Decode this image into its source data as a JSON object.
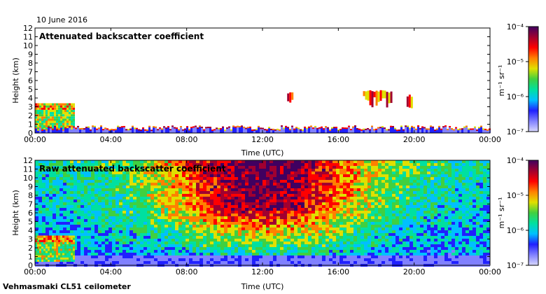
{
  "date_label": "10 June 2016",
  "instrument_label": "Vehmasmaki CL51 ceilometer",
  "colorbar": {
    "unit_label": "m⁻¹ sr⁻¹",
    "tick_labels": [
      "10⁻⁴",
      "10⁻⁵",
      "10⁻⁶",
      "10⁻⁷"
    ],
    "range": [
      1e-07,
      0.0001
    ],
    "colors": [
      "#d8d8ff",
      "#8080ff",
      "#2020ff",
      "#00c0ff",
      "#00e0a0",
      "#40d040",
      "#e0e000",
      "#ff8000",
      "#ff0000",
      "#a00030",
      "#400060"
    ]
  },
  "chart_data": [
    {
      "type": "heatmap",
      "title": "Attenuated backscatter coefficient",
      "xlabel": "Time (UTC)",
      "ylabel": "Height (km)",
      "x_ticks": [
        "00:00",
        "04:00",
        "08:00",
        "12:00",
        "16:00",
        "20:00",
        "00:00"
      ],
      "y_ticks": [
        "0",
        "1",
        "2",
        "3",
        "4",
        "5",
        "6",
        "7",
        "8",
        "9",
        "10",
        "11",
        "12"
      ],
      "xlim_hours": [
        0,
        24
      ],
      "ylim_km": [
        0,
        12
      ],
      "features": [
        {
          "name": "low boundary layer aerosol",
          "start_h": 0,
          "end_h": 2,
          "top_km": 3.2
        },
        {
          "name": "surface layer",
          "start_h": 0,
          "end_h": 24,
          "top_km": 0.7
        },
        {
          "name": "cloud",
          "start_h": 13.3,
          "end_h": 13.6,
          "top_km": 4.8
        },
        {
          "name": "cloud",
          "start_h": 17.3,
          "end_h": 18.8,
          "top_km": 4.9
        },
        {
          "name": "cloud",
          "start_h": 19.6,
          "end_h": 19.9,
          "top_km": 4.4
        }
      ]
    },
    {
      "type": "heatmap",
      "title": "Raw attenuated backscatter coefficient",
      "xlabel": "Time (UTC)",
      "ylabel": "Height (km)",
      "x_ticks": [
        "00:00",
        "04:00",
        "08:00",
        "12:00",
        "16:00",
        "20:00",
        "00:00"
      ],
      "y_ticks": [
        "0",
        "1",
        "2",
        "3",
        "4",
        "5",
        "6",
        "7",
        "8",
        "9",
        "10",
        "11",
        "12"
      ],
      "xlim_hours": [
        0,
        24
      ],
      "ylim_km": [
        0,
        12
      ],
      "features": [
        {
          "name": "solar background noise",
          "start_h": 0,
          "end_h": 24,
          "peak_h": 12
        },
        {
          "name": "low boundary layer aerosol",
          "start_h": 0,
          "end_h": 2,
          "top_km": 3.2
        }
      ]
    }
  ]
}
